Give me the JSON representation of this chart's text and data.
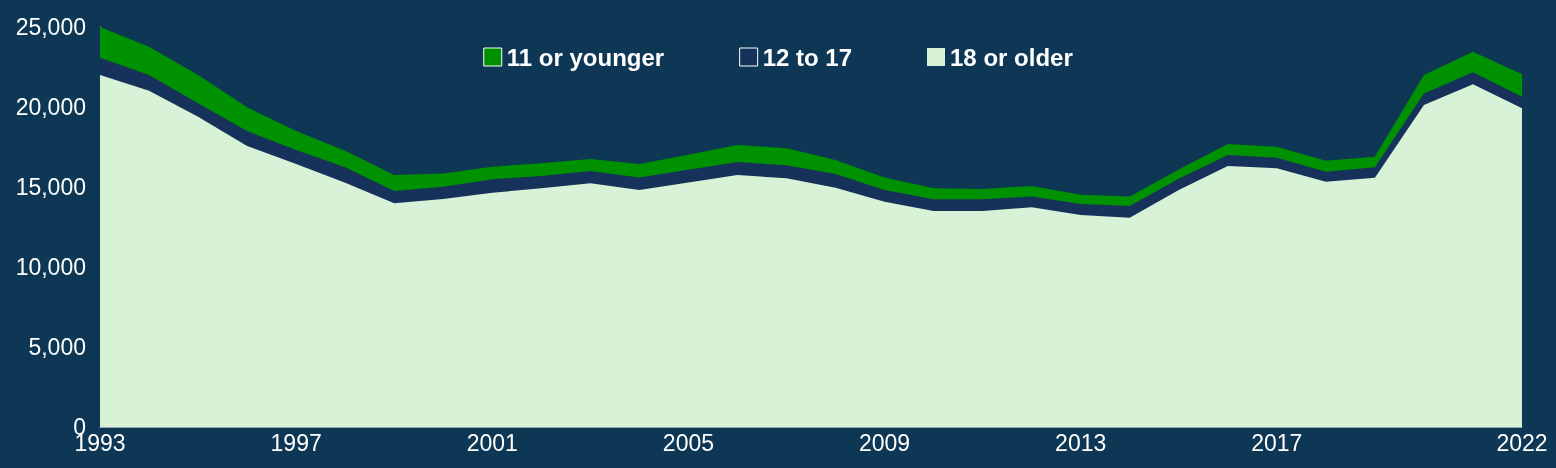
{
  "chart_data": {
    "type": "area",
    "stacked": true,
    "x": [
      1993,
      1994,
      1995,
      1996,
      1997,
      1998,
      1999,
      2000,
      2001,
      2002,
      2003,
      2004,
      2005,
      2006,
      2007,
      2008,
      2009,
      2010,
      2011,
      2012,
      2013,
      2014,
      2015,
      2016,
      2017,
      2018,
      2019,
      2020,
      2021,
      2022
    ],
    "series": [
      {
        "name": "18 or older",
        "color": "#d8f2d8",
        "values": [
          22000,
          21020,
          19390,
          17560,
          16440,
          15270,
          13980,
          14250,
          14640,
          14920,
          15230,
          14810,
          15280,
          15750,
          15540,
          14960,
          14080,
          13500,
          13500,
          13730,
          13250,
          13080,
          14810,
          16310,
          16170,
          15330,
          15580,
          20130,
          21420,
          19920
        ]
      },
      {
        "name": "12 to 17",
        "color": "#17325a",
        "values": [
          1080,
          980,
          840,
          940,
          870,
          960,
          770,
          770,
          840,
          770,
          770,
          790,
          800,
          810,
          820,
          850,
          730,
          730,
          730,
          670,
          690,
          730,
          710,
          690,
          660,
          630,
          650,
          720,
          750,
          720
        ]
      },
      {
        "name": "11 or younger",
        "color": "#009100",
        "values": [
          1920,
          1770,
          1770,
          1480,
          1190,
          1040,
          1000,
          830,
          790,
          790,
          750,
          840,
          940,
          1070,
          1060,
          880,
          790,
          690,
          650,
          660,
          580,
          590,
          580,
          690,
          690,
          680,
          660,
          1150,
          1290,
          1400
        ]
      }
    ],
    "xlim": [
      1993,
      2022
    ],
    "xticks": [
      1993,
      1997,
      2001,
      2005,
      2009,
      2013,
      2017,
      2022
    ],
    "ylim": [
      0,
      25000
    ],
    "yticks": [
      0,
      {
        "value": 5000,
        "label": "5,000"
      },
      {
        "value": 10000,
        "label": "10,000"
      },
      {
        "value": 15000,
        "label": "15,000"
      },
      {
        "value": 20000,
        "label": "20,000"
      },
      {
        "value": 25000,
        "label": "25,000"
      }
    ],
    "grid": false,
    "legend": "top"
  }
}
